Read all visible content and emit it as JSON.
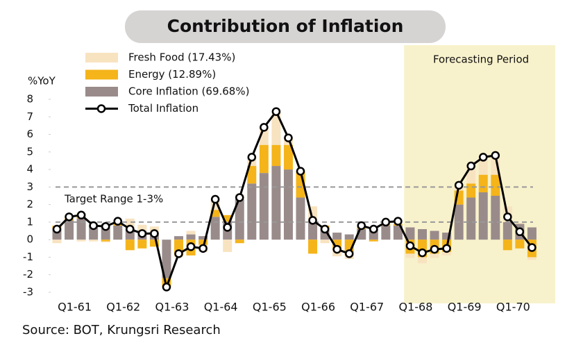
{
  "chart_data": {
    "type": "stacked-bar-line",
    "title": "Contribution of Inflation",
    "y_label": "%YoY",
    "source": "Source: BOT, Krungsri Research",
    "annotation": "Target Range 1-3%",
    "target_range": [
      1,
      3
    ],
    "forecast_label": "Forecasting Period",
    "forecast_start_index": 29,
    "categories": [
      null,
      "Q1-61",
      null,
      null,
      null,
      "Q1-62",
      null,
      null,
      null,
      "Q1-63",
      null,
      null,
      null,
      "Q1-64",
      null,
      null,
      null,
      "Q1-65",
      null,
      null,
      null,
      "Q1-66",
      null,
      null,
      null,
      "Q1-67",
      null,
      null,
      null,
      "Q1-68",
      null,
      null,
      null,
      "Q1-69",
      null,
      null,
      null,
      "Q1-70",
      null,
      null
    ],
    "ylim": [
      -3,
      8
    ],
    "yticks": [
      -3,
      -2,
      -1,
      0,
      1,
      2,
      3,
      4,
      5,
      6,
      7,
      8
    ],
    "series": [
      {
        "name": "Fresh Food (17.43%)",
        "kind": "bar",
        "color": "#f8e3c0",
        "values": [
          -0.2,
          0.1,
          -0.1,
          -0.1,
          -0.05,
          0.15,
          0.6,
          0.35,
          0.35,
          0,
          -0.1,
          0.2,
          -0.4,
          0.6,
          -0.7,
          0.3,
          0.5,
          1.0,
          1.9,
          0.4,
          0,
          0.9,
          -0.2,
          -0.35,
          -0.2,
          0.1,
          0.1,
          0.1,
          0.15,
          -0.25,
          -0.35,
          -0.25,
          -0.2,
          0.3,
          1.0,
          1.0,
          1.1,
          0.9,
          0.05,
          -0.15
        ]
      },
      {
        "name": "Energy (12.89%)",
        "kind": "bar",
        "color": "#f4b41a",
        "values": [
          0.2,
          0.1,
          0.3,
          0.1,
          -0.1,
          0.1,
          -0.6,
          -0.5,
          -0.4,
          -0.5,
          -0.9,
          -0.9,
          -0.3,
          0.4,
          0.4,
          -0.2,
          1.0,
          1.6,
          1.2,
          1.4,
          1.5,
          -0.8,
          0.1,
          -0.6,
          -0.9,
          0.1,
          -0.1,
          0.1,
          0.1,
          -0.8,
          -1.0,
          -0.8,
          -0.7,
          0.8,
          0.8,
          1.0,
          1.2,
          -0.6,
          -0.5,
          -1.0
        ]
      },
      {
        "name": "Core Inflation (69.68%)",
        "kind": "bar",
        "color": "#9a8b8b",
        "values": [
          0.6,
          1.1,
          1.2,
          0.8,
          0.9,
          0.8,
          0.6,
          0.5,
          0.4,
          -2.2,
          0.2,
          0.3,
          0.2,
          1.3,
          1.0,
          2.3,
          3.2,
          3.8,
          4.2,
          4.0,
          2.4,
          1.0,
          0.7,
          0.4,
          0.3,
          0.6,
          0.6,
          0.8,
          0.8,
          0.7,
          0.6,
          0.5,
          0.4,
          2.0,
          2.4,
          2.7,
          2.5,
          1.0,
          0.9,
          0.7
        ]
      },
      {
        "name": "Total Inflation",
        "kind": "line",
        "color": "#000000",
        "values": [
          0.6,
          1.3,
          1.4,
          0.8,
          0.75,
          1.05,
          0.6,
          0.35,
          0.35,
          -2.7,
          -0.8,
          -0.4,
          -0.5,
          2.3,
          0.7,
          2.4,
          4.7,
          6.4,
          7.3,
          5.8,
          3.9,
          1.1,
          0.6,
          -0.55,
          -0.8,
          0.8,
          0.6,
          1.0,
          1.05,
          -0.35,
          -0.75,
          -0.55,
          -0.5,
          3.1,
          4.2,
          4.7,
          4.8,
          1.3,
          0.45,
          -0.45
        ]
      }
    ]
  }
}
